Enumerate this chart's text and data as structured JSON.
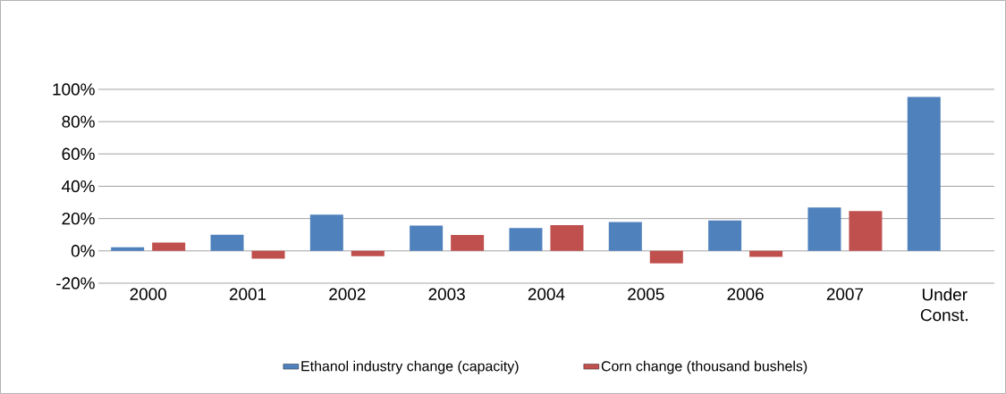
{
  "chart_data": {
    "type": "bar",
    "categories": [
      "2000",
      "2001",
      "2002",
      "2003",
      "2004",
      "2005",
      "2006",
      "2007",
      "Under Const."
    ],
    "series": [
      {
        "name": "Ethanol industry change (capacity)",
        "color": "#4f81bd",
        "values": [
          2.3,
          10,
          22.5,
          15.6,
          14.2,
          17.9,
          18.8,
          26.9,
          95.3
        ]
      },
      {
        "name": "Corn change (thousand bushels)",
        "color": "#c0504d",
        "values": [
          5.2,
          -4.8,
          -3.3,
          9.8,
          16,
          -7.7,
          -3.7,
          24.6,
          null
        ]
      }
    ],
    "ylim": [
      -20,
      100
    ],
    "yticks": [
      {
        "value": -20,
        "label": "-20%"
      },
      {
        "value": 0,
        "label": "0%"
      },
      {
        "value": 20,
        "label": "20%"
      },
      {
        "value": 40,
        "label": "40%"
      },
      {
        "value": 60,
        "label": "60%"
      },
      {
        "value": 80,
        "label": "80%"
      },
      {
        "value": 100,
        "label": "100%"
      }
    ],
    "grid": "y",
    "legend": "bottom"
  }
}
